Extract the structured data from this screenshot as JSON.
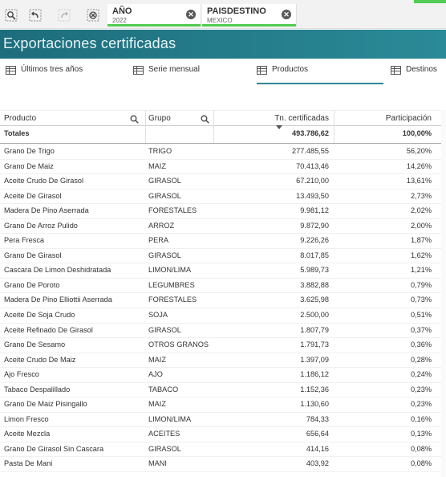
{
  "toolbar": {
    "tools": [
      "search-selections-icon",
      "step-back-icon",
      "step-forward-icon",
      "clear-selections-icon"
    ],
    "selections": [
      {
        "field": "AÑO",
        "value": "2022"
      },
      {
        "field": "PAISDESTINO",
        "value": "MEXICO"
      }
    ]
  },
  "banner": {
    "title": "Exportaciones certificadas"
  },
  "tabs": [
    {
      "label": "Últimos tres años"
    },
    {
      "label": "Serie mensual"
    },
    {
      "label": "Productos"
    },
    {
      "label": "Destinos"
    }
  ],
  "table": {
    "headers": {
      "producto": "Producto",
      "grupo": "Grupo",
      "tn": "Tn. certificadas",
      "part": "Participación"
    },
    "totals": {
      "label": "Totales",
      "tn": "493.786,62",
      "part": "100,00%"
    },
    "rows": [
      {
        "producto": "Grano De Trigo",
        "grupo": "TRIGO",
        "tn": "277.485,55",
        "part": "56,20%"
      },
      {
        "producto": "Grano De Maiz",
        "grupo": "MAIZ",
        "tn": "70.413,46",
        "part": "14,26%"
      },
      {
        "producto": "Aceite Crudo De Girasol",
        "grupo": "GIRASOL",
        "tn": "67.210,00",
        "part": "13,61%"
      },
      {
        "producto": "Aceite De Girasol",
        "grupo": "GIRASOL",
        "tn": "13.493,50",
        "part": "2,73%"
      },
      {
        "producto": "Madera De Pino Aserrada",
        "grupo": "FORESTALES",
        "tn": "9.981,12",
        "part": "2,02%"
      },
      {
        "producto": "Grano De Arroz Pulido",
        "grupo": "ARROZ",
        "tn": "9.872,90",
        "part": "2,00%"
      },
      {
        "producto": "Pera Fresca",
        "grupo": "PERA",
        "tn": "9.226,26",
        "part": "1,87%"
      },
      {
        "producto": "Grano De Girasol",
        "grupo": "GIRASOL",
        "tn": "8.017,85",
        "part": "1,62%"
      },
      {
        "producto": "Cascara De Limon Deshidratada",
        "grupo": "LIMON/LIMA",
        "tn": "5.989,73",
        "part": "1,21%"
      },
      {
        "producto": "Grano De Poroto",
        "grupo": "LEGUMBRES",
        "tn": "3.882,88",
        "part": "0,79%"
      },
      {
        "producto": "Madera De Pino Elliottii Aserrada",
        "grupo": "FORESTALES",
        "tn": "3.625,98",
        "part": "0,73%"
      },
      {
        "producto": "Aceite De Soja Crudo",
        "grupo": "SOJA",
        "tn": "2.500,00",
        "part": "0,51%"
      },
      {
        "producto": "Aceite Refinado De Girasol",
        "grupo": "GIRASOL",
        "tn": "1.807,79",
        "part": "0,37%"
      },
      {
        "producto": "Grano De Sesamo",
        "grupo": "OTROS GRANOS",
        "tn": "1.791,73",
        "part": "0,36%"
      },
      {
        "producto": "Aceite Crudo De Maiz",
        "grupo": "MAIZ",
        "tn": "1.397,09",
        "part": "0,28%"
      },
      {
        "producto": "Ajo Fresco",
        "grupo": "AJO",
        "tn": "1.186,12",
        "part": "0,24%"
      },
      {
        "producto": "Tabaco Despalillado",
        "grupo": "TABACO",
        "tn": "1.152,36",
        "part": "0,23%"
      },
      {
        "producto": "Grano De Maiz Pisingallo",
        "grupo": "MAIZ",
        "tn": "1.130,60",
        "part": "0,23%"
      },
      {
        "producto": "Limon Fresco",
        "grupo": "LIMON/LIMA",
        "tn": "784,33",
        "part": "0,16%"
      },
      {
        "producto": "Aceite Mezcla",
        "grupo": "ACEITES",
        "tn": "656,64",
        "part": "0,13%"
      },
      {
        "producto": "Grano De Girasol Sin Cascara",
        "grupo": "GIRASOL",
        "tn": "414,16",
        "part": "0,08%"
      },
      {
        "producto": "Pasta De Mani",
        "grupo": "MANI",
        "tn": "403,92",
        "part": "0,08%"
      }
    ]
  },
  "colors": {
    "banner": "#1d6d7c",
    "accent": "#52cc52",
    "tab_underline": "#2b8a97"
  }
}
